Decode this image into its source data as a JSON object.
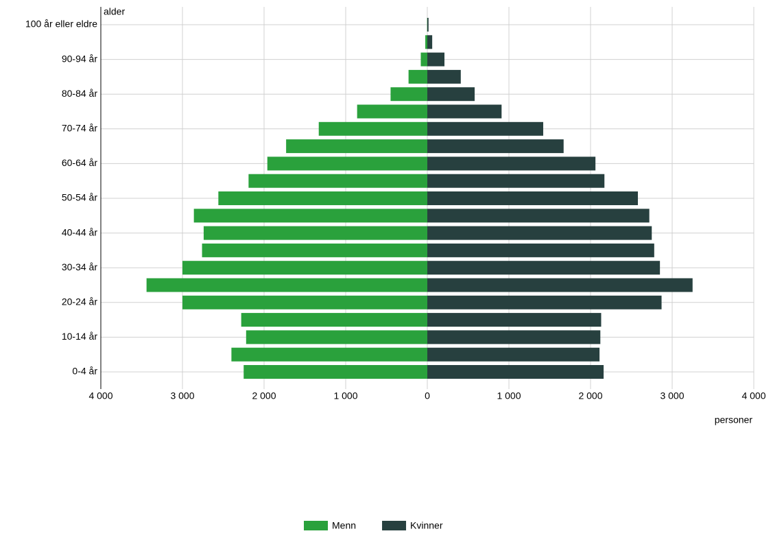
{
  "chart_data": {
    "type": "pyramid",
    "y_label": "alder",
    "x_label": "personer",
    "categories": [
      "0-4 år",
      null,
      "10-14 år",
      null,
      "20-24 år",
      null,
      "30-34 år",
      null,
      "40-44 år",
      null,
      "50-54 år",
      null,
      "60-64 år",
      null,
      "70-74 år",
      null,
      "80-84 år",
      null,
      "90-94 år",
      null,
      "100 år eller eldre"
    ],
    "series": [
      {
        "name": "Menn",
        "color": "#2aa13c",
        "values": [
          -2250,
          -2400,
          -2220,
          -2280,
          -3000,
          -3440,
          -3000,
          -2760,
          -2740,
          -2860,
          -2560,
          -2190,
          -1960,
          -1730,
          -1330,
          -860,
          -450,
          -230,
          -80,
          -25,
          -3
        ]
      },
      {
        "name": "Kvinner",
        "color": "#27403f",
        "values": [
          2160,
          2110,
          2120,
          2130,
          2870,
          3250,
          2850,
          2780,
          2750,
          2720,
          2580,
          2170,
          2060,
          1670,
          1420,
          910,
          580,
          410,
          210,
          60,
          15
        ]
      }
    ],
    "xlim": [
      -4000,
      4000
    ],
    "xticks": [
      {
        "value": -4000,
        "label": "4 000"
      },
      {
        "value": -3000,
        "label": "3 000"
      },
      {
        "value": -2000,
        "label": "2 000"
      },
      {
        "value": -1000,
        "label": "1 000"
      },
      0,
      {
        "value": 1000,
        "label": "1 000"
      },
      {
        "value": 2000,
        "label": "2 000"
      },
      {
        "value": 3000,
        "label": "3 000"
      },
      {
        "value": 4000,
        "label": "4 000"
      }
    ],
    "grid": true,
    "legend": "bottom"
  }
}
